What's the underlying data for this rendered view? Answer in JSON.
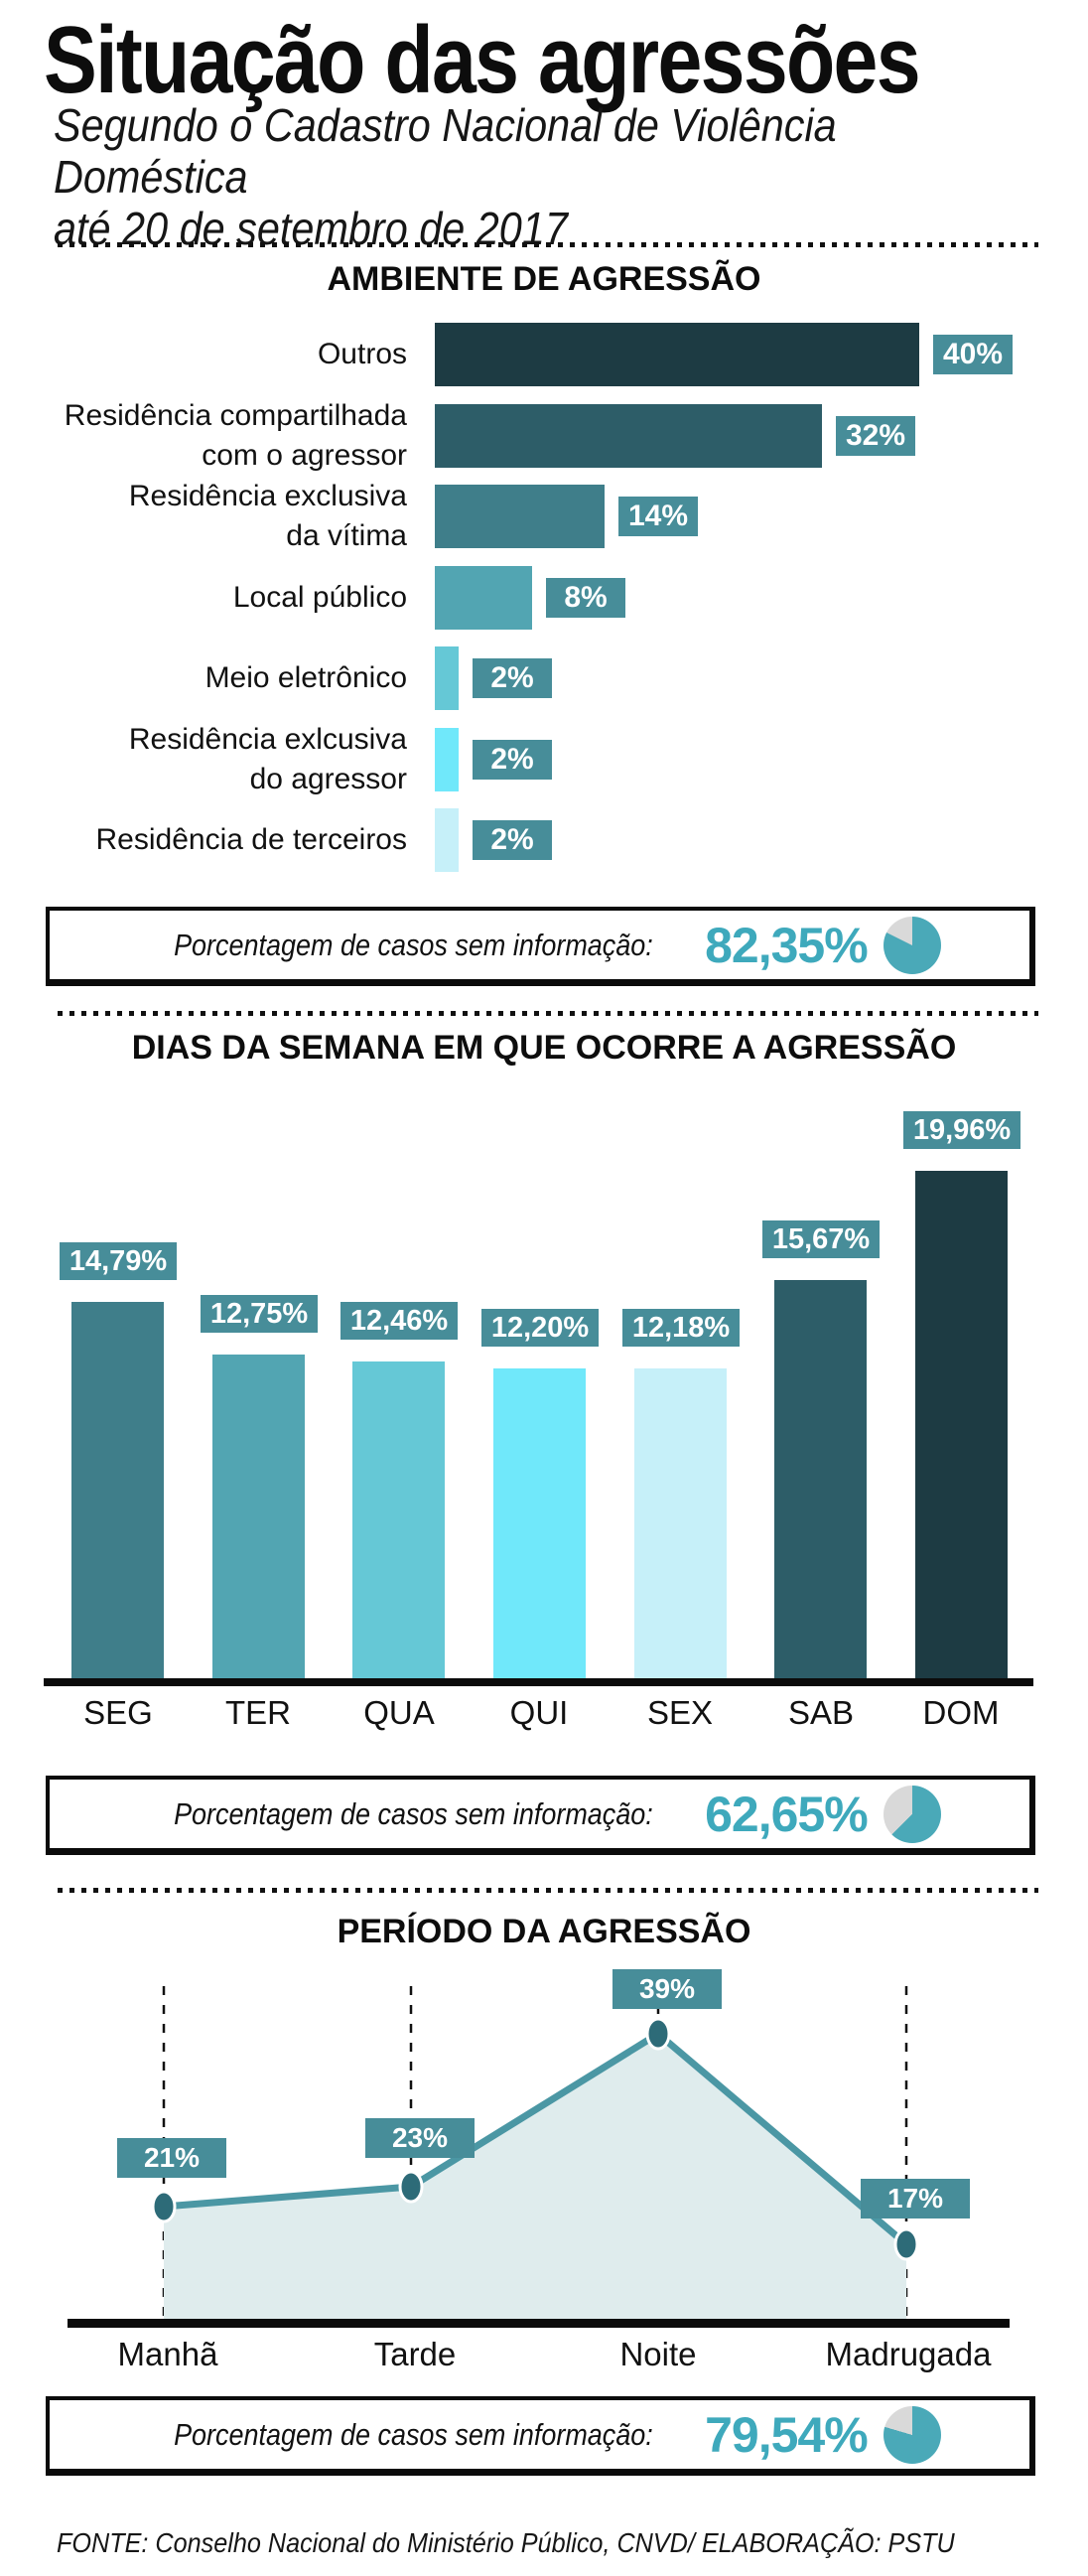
{
  "header": {
    "title": "Situação das agressões",
    "subtitle": "Segundo o Cadastro Nacional de Violência Doméstica\naté 20 de setembro de 2017"
  },
  "footer": {
    "source": "FONTE: Conselho Nacional do Ministério Público, CNVD/ ELABORAÇÃO: PSTU"
  },
  "colors": {
    "ramp_darkest": "#1d3b43",
    "badge_teal": "#478d99",
    "big_number_teal": "#3ea9bc",
    "pie_teal": "#4aa9b8",
    "pie_gray": "#d9d9d9",
    "line_teal": "#4b97a4",
    "area_fill": "#dfeced",
    "dot_fill": "#2d6b78"
  },
  "chart_data": [
    {
      "type": "bar",
      "orientation": "horizontal",
      "title": "AMBIENTE DE AGRESSÃO",
      "categories": [
        "Outros",
        "Residência compartilhada\ncom o agressor",
        "Residência exclusiva\nda vítima",
        "Local público",
        "Meio eletrônico",
        "Residência exlcusiva\ndo agressor",
        "Residência de terceiros"
      ],
      "values": [
        40,
        32,
        14,
        8,
        2,
        2,
        2
      ],
      "value_labels": [
        "40%",
        "32%",
        "14%",
        "8%",
        "2%",
        "2%",
        "2%"
      ],
      "colors": [
        "#1d3b43",
        "#2d5d68",
        "#3f7e8a",
        "#52a5b2",
        "#65c8d6",
        "#70e8fa",
        "#c6f0f9"
      ],
      "xlim": [
        0,
        40
      ],
      "grid": false,
      "no_info": {
        "label": "Porcentagem de casos sem informação:",
        "value": 82.35,
        "display": "82,35%"
      }
    },
    {
      "type": "bar",
      "orientation": "vertical",
      "title": "DIAS DA SEMANA EM QUE OCORRE A AGRESSÃO",
      "categories": [
        "SEG",
        "TER",
        "QUA",
        "QUI",
        "SEX",
        "SAB",
        "DOM"
      ],
      "values": [
        14.79,
        12.75,
        12.46,
        12.2,
        12.18,
        15.67,
        19.96
      ],
      "value_labels": [
        "14,79%",
        "12,75%",
        "12,46%",
        "12,20%",
        "12,18%",
        "15,67%",
        "19,96%"
      ],
      "colors": [
        "#3f7e8a",
        "#52a5b2",
        "#65c8d6",
        "#70e8fa",
        "#c6f0f9",
        "#2d5d68",
        "#1d3b43"
      ],
      "ylim": [
        0,
        20
      ],
      "grid": false,
      "no_info": {
        "label": "Porcentagem de casos sem informação:",
        "value": 62.65,
        "display": "62,65%"
      }
    },
    {
      "type": "line",
      "title": "PERÍODO DA AGRESSÃO",
      "categories": [
        "Manhã",
        "Tarde",
        "Noite",
        "Madrugada"
      ],
      "values": [
        21,
        23,
        39,
        17
      ],
      "value_labels": [
        "21%",
        "23%",
        "39%",
        "17%"
      ],
      "area_filled": true,
      "guides": "vertical-dashed",
      "no_info": {
        "label": "Porcentagem de casos sem informação:",
        "value": 79.54,
        "display": "79,54%"
      }
    }
  ]
}
